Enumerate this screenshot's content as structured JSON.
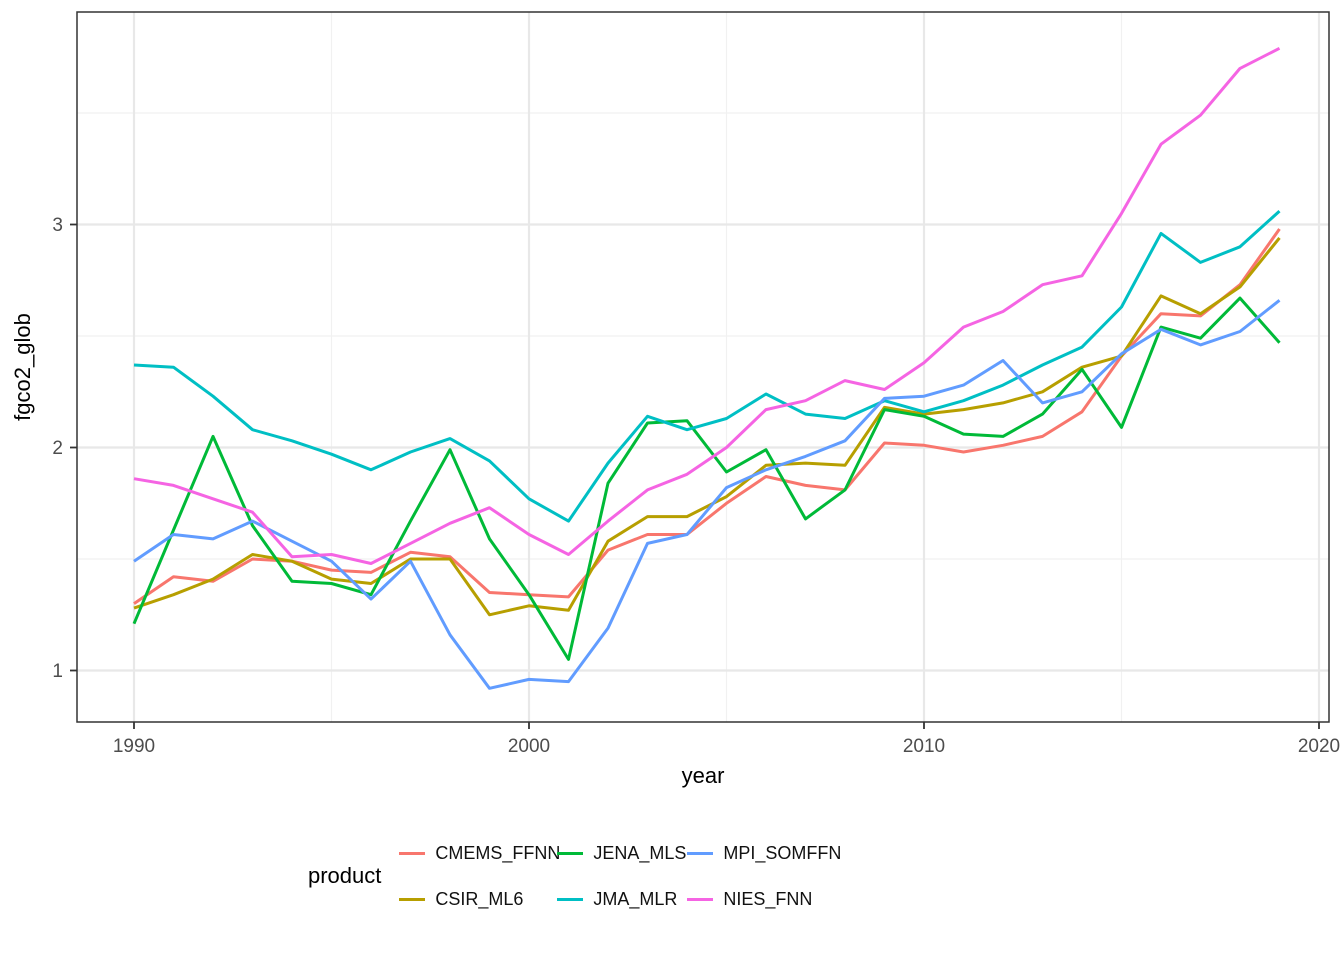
{
  "chart_data": {
    "type": "line",
    "title": "",
    "xlabel": "year",
    "ylabel": "fgco2_glob",
    "grid": "on",
    "x_tick_labels": [
      "1990",
      "2000",
      "2010",
      "2020"
    ],
    "x_ticks": [
      1990,
      2000,
      2010,
      2020
    ],
    "x_minor_ticks": [
      1995,
      2005,
      2015
    ],
    "y_tick_labels": [
      "1",
      "2",
      "3"
    ],
    "y_ticks": [
      1,
      2,
      3
    ],
    "y_minor_ticks": [
      1.5,
      2.5,
      3.5
    ],
    "xlim": [
      1988.5,
      2021.4
    ],
    "ylim": [
      0.78,
      3.95
    ],
    "x": [
      1990,
      1991,
      1992,
      1993,
      1994,
      1995,
      1996,
      1997,
      1998,
      1999,
      2000,
      2001,
      2002,
      2003,
      2004,
      2005,
      2006,
      2007,
      2008,
      2009,
      2010,
      2011,
      2012,
      2013,
      2014,
      2015,
      2016,
      2017,
      2018,
      2019
    ],
    "series": [
      {
        "name": "CMEMS_FFNN",
        "color": "#F8766D",
        "values": [
          1.3,
          1.42,
          1.4,
          1.5,
          1.49,
          1.45,
          1.44,
          1.53,
          1.51,
          1.35,
          1.34,
          1.33,
          1.54,
          1.61,
          1.61,
          1.75,
          1.87,
          1.83,
          1.81,
          2.02,
          2.01,
          1.98,
          2.01,
          2.05,
          2.16,
          2.41,
          2.6,
          2.59,
          2.73,
          2.98
        ]
      },
      {
        "name": "CSIR_ML6",
        "color": "#B79F00",
        "values": [
          1.28,
          1.34,
          1.41,
          1.52,
          1.49,
          1.41,
          1.39,
          1.5,
          1.5,
          1.25,
          1.29,
          1.27,
          1.58,
          1.69,
          1.69,
          1.78,
          1.92,
          1.93,
          1.92,
          2.18,
          2.15,
          2.17,
          2.2,
          2.25,
          2.36,
          2.41,
          2.68,
          2.6,
          2.72,
          2.94
        ]
      },
      {
        "name": "JENA_MLS",
        "color": "#00BA38",
        "values": [
          1.21,
          1.63,
          2.05,
          1.65,
          1.4,
          1.39,
          1.34,
          1.67,
          1.99,
          1.59,
          1.34,
          1.05,
          1.84,
          2.11,
          2.12,
          1.89,
          1.99,
          1.68,
          1.81,
          2.17,
          2.14,
          2.06,
          2.05,
          2.15,
          2.35,
          2.09,
          2.54,
          2.49,
          2.67,
          2.47
        ]
      },
      {
        "name": "JMA_MLR",
        "color": "#00BFC4",
        "values": [
          2.37,
          2.36,
          2.23,
          2.08,
          2.03,
          1.97,
          1.9,
          1.98,
          2.04,
          1.94,
          1.77,
          1.67,
          1.93,
          2.14,
          2.08,
          2.13,
          2.24,
          2.15,
          2.13,
          2.21,
          2.16,
          2.21,
          2.28,
          2.37,
          2.45,
          2.63,
          2.96,
          2.83,
          2.9,
          3.06
        ]
      },
      {
        "name": "MPI_SOMFFN",
        "color": "#619CFF",
        "values": [
          1.49,
          1.61,
          1.59,
          1.67,
          1.58,
          1.49,
          1.32,
          1.49,
          1.16,
          0.92,
          0.96,
          0.95,
          1.19,
          1.57,
          1.61,
          1.82,
          1.9,
          1.96,
          2.03,
          2.22,
          2.23,
          2.28,
          2.39,
          2.2,
          2.25,
          2.42,
          2.53,
          2.46,
          2.52,
          2.66
        ]
      },
      {
        "name": "NIES_FNN",
        "color": "#F564E3",
        "values": [
          1.86,
          1.83,
          1.77,
          1.71,
          1.51,
          1.52,
          1.48,
          1.57,
          1.66,
          1.73,
          1.61,
          1.52,
          1.67,
          1.81,
          1.88,
          2.0,
          2.17,
          2.21,
          2.3,
          2.26,
          2.38,
          2.54,
          2.61,
          2.73,
          2.77,
          3.05,
          3.36,
          3.49,
          3.7,
          3.79
        ]
      }
    ],
    "legend": {
      "title": "product",
      "position": "bottom",
      "display_order": [
        0,
        2,
        4,
        1,
        3,
        5
      ]
    },
    "style": {
      "panel_border_color": "#333333",
      "grid_major_color": "#e8e8e8",
      "grid_minor_color": "#f1f1f1",
      "tick_color": "#333333",
      "tick_label_color": "#4d4d4d",
      "background": "#ffffff",
      "line_width": 3
    }
  }
}
